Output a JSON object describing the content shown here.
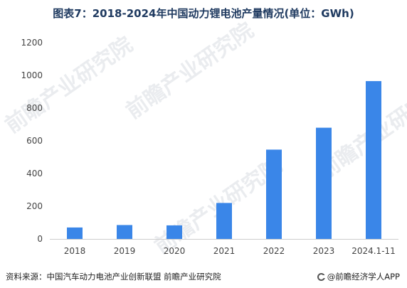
{
  "title": "图表7：2018-2024年中国动力锂电池产量情况(单位：GWh)",
  "footer": {
    "source": "资料来源：中国汽车动力电池产业创新联盟 前瞻产业研究院",
    "brand": "@前瞻经济学人APP"
  },
  "watermark_text": "前瞻产业研究院",
  "colors": {
    "bar": "#3a86e8",
    "title": "#1f3a60",
    "axis": "#cccccc",
    "tick_text": "#444444"
  },
  "chart_data": {
    "type": "bar",
    "title": "图表7：2018-2024年中国动力锂电池产量情况(单位：GWh)",
    "xlabel": "",
    "ylabel": "",
    "categories": [
      "2018",
      "2019",
      "2020",
      "2021",
      "2022",
      "2023",
      "2024.1-11"
    ],
    "values": [
      70,
      85,
      83,
      220,
      546,
      680,
      965
    ],
    "ylim": [
      0,
      1200
    ],
    "yticks": [
      0,
      200,
      400,
      600,
      800,
      1000,
      1200
    ],
    "grid": false,
    "legend": "none"
  }
}
